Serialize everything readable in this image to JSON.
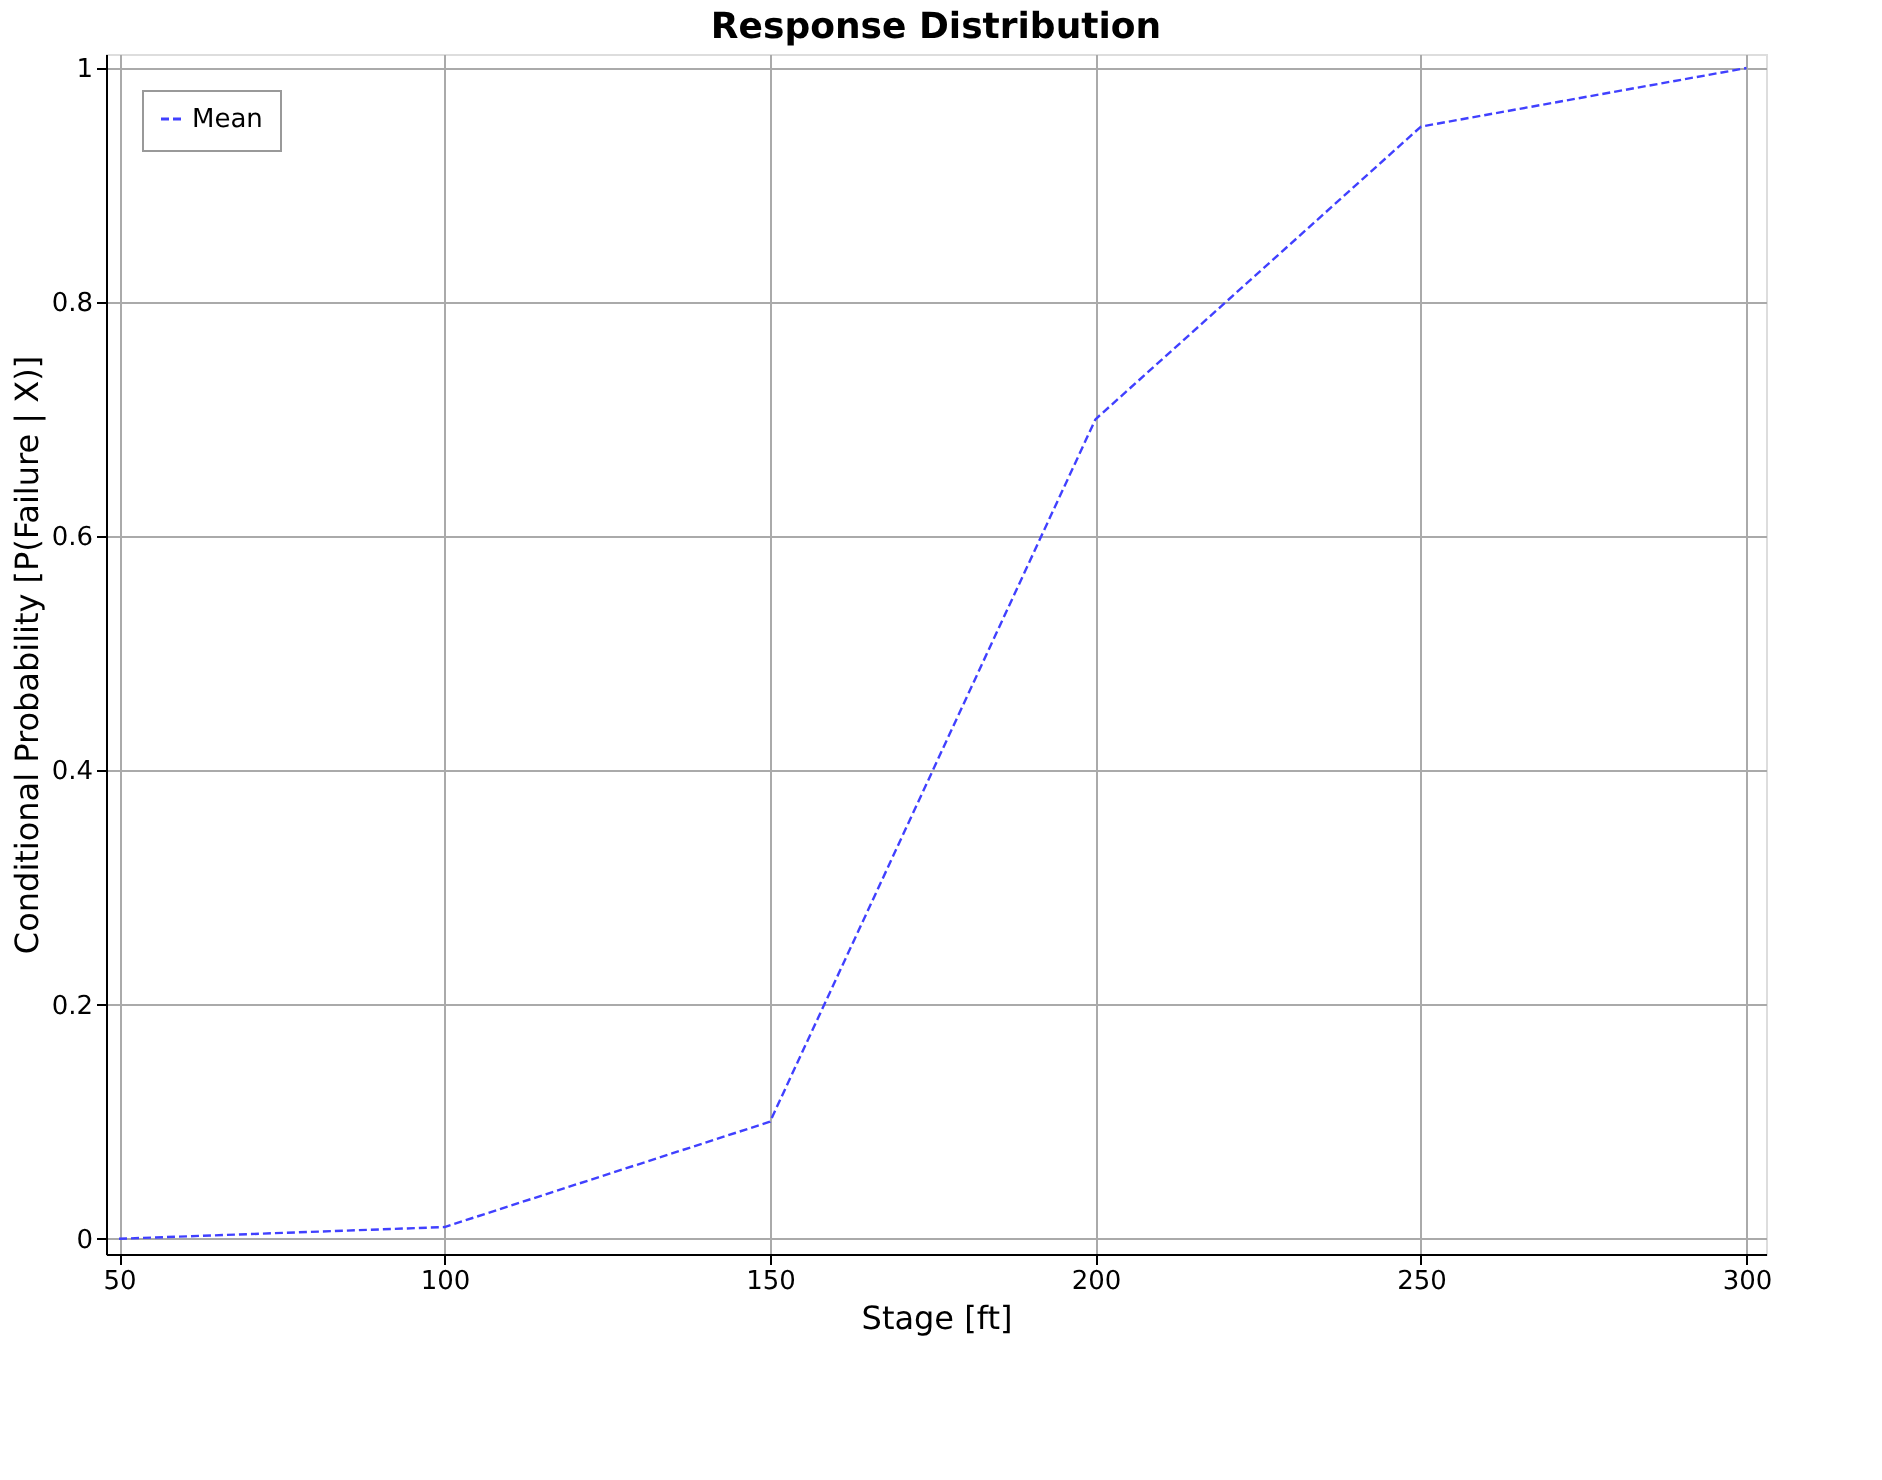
{
  "chart_data": {
    "type": "line",
    "title": "Response Distribution",
    "xlabel": "Stage [ft]",
    "ylabel": "Conditional Probability  [P(Failure | X)]",
    "x": [
      50,
      100,
      150,
      200,
      250,
      300
    ],
    "series": [
      {
        "name": "Mean",
        "color": "#4040ff",
        "values": [
          0.0,
          0.01,
          0.1,
          0.7,
          0.95,
          1.0
        ]
      }
    ],
    "xlim": [
      48,
      303
    ],
    "xticks": [
      50,
      100,
      150,
      200,
      250,
      300
    ],
    "ylim": [
      -0.013,
      1.012
    ],
    "yticks": [
      0,
      0.2,
      0.4,
      0.6,
      0.8,
      1
    ],
    "grid": true,
    "legend": "top left",
    "line_style": "dashed",
    "marker": "none"
  }
}
